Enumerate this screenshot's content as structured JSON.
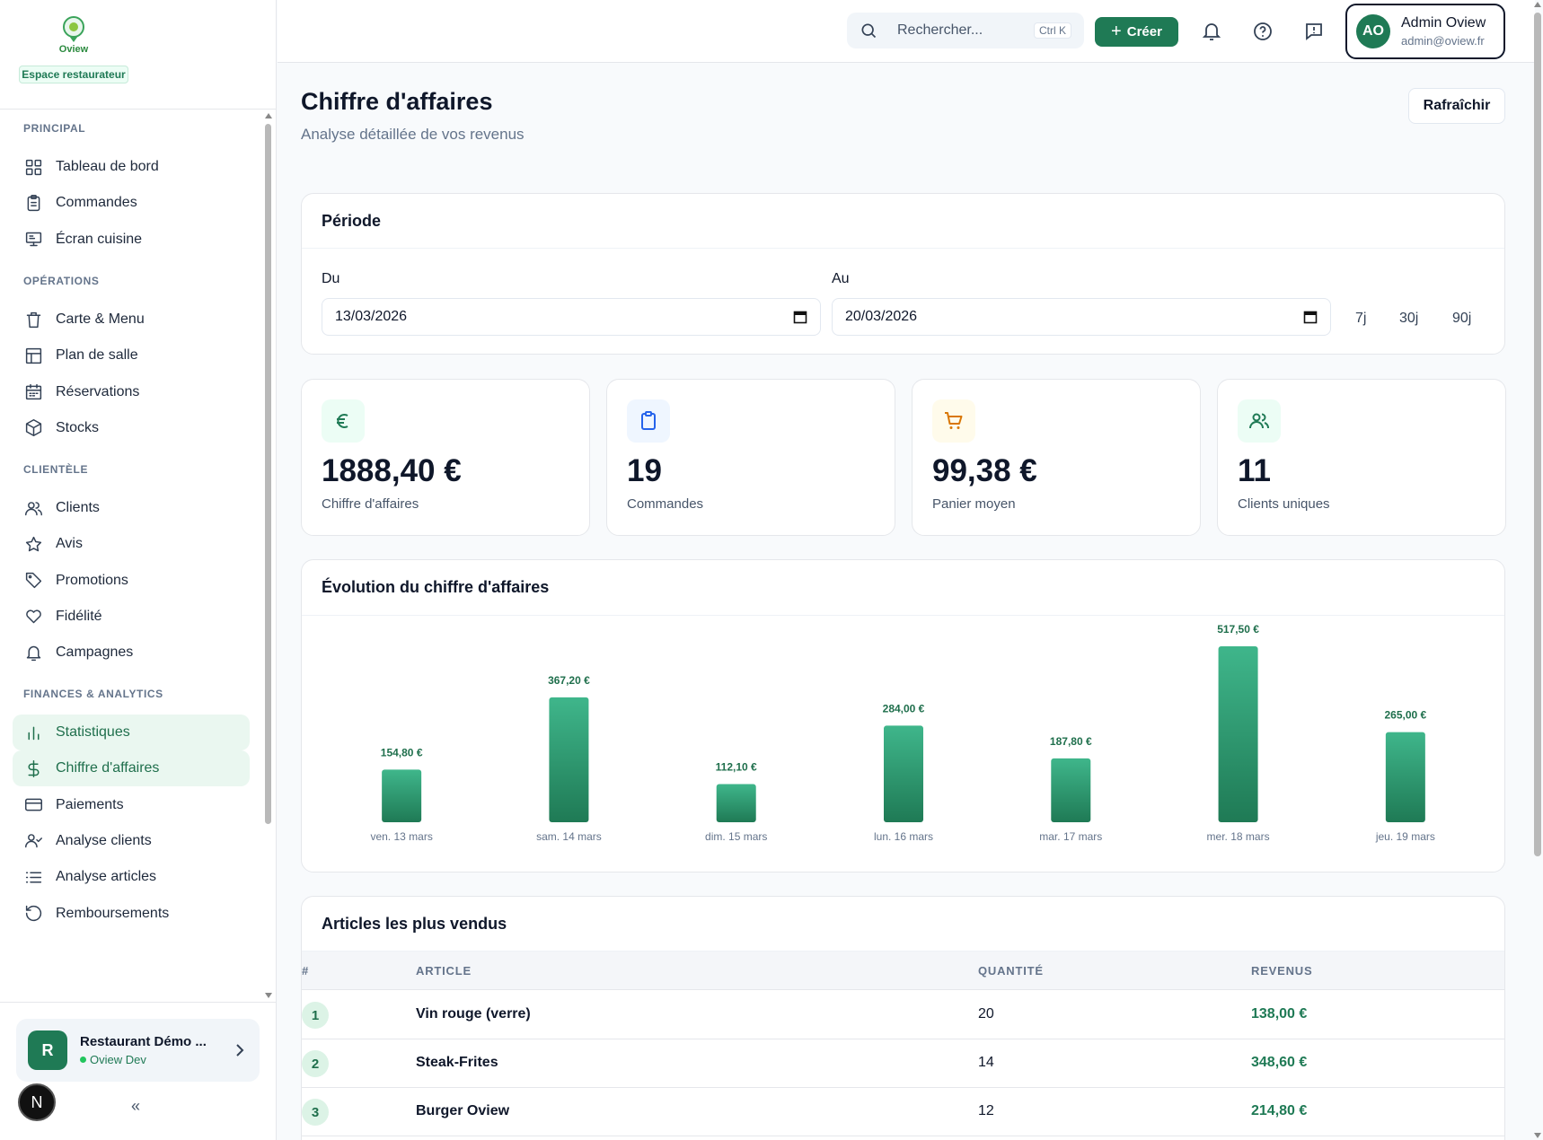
{
  "brand": {
    "logo_text": "Oview",
    "badge": "Espace restaurateur"
  },
  "nav": {
    "sections": [
      {
        "title": "PRINCIPAL",
        "items": [
          {
            "label": "Tableau de bord",
            "icon": "grid-icon"
          },
          {
            "label": "Commandes",
            "icon": "clipboard-icon"
          },
          {
            "label": "Écran cuisine",
            "icon": "monitor-icon"
          }
        ]
      },
      {
        "title": "OPÉRATIONS",
        "items": [
          {
            "label": "Carte & Menu",
            "icon": "trash-menu-icon"
          },
          {
            "label": "Plan de salle",
            "icon": "layout-icon"
          },
          {
            "label": "Réservations",
            "icon": "calendar-icon"
          },
          {
            "label": "Stocks",
            "icon": "package-icon"
          }
        ]
      },
      {
        "title": "CLIENTÈLE",
        "items": [
          {
            "label": "Clients",
            "icon": "users-icon"
          },
          {
            "label": "Avis",
            "icon": "star-icon"
          },
          {
            "label": "Promotions",
            "icon": "tag-icon"
          },
          {
            "label": "Fidélité",
            "icon": "heart-icon"
          },
          {
            "label": "Campagnes",
            "icon": "bell-icon"
          }
        ]
      },
      {
        "title": "FINANCES & ANALYTICS",
        "items": [
          {
            "label": "Statistiques",
            "icon": "bar-chart-icon",
            "active": true
          },
          {
            "label": "Chiffre d'affaires",
            "icon": "dollar-icon",
            "active": true
          },
          {
            "label": "Paiements",
            "icon": "credit-card-icon"
          },
          {
            "label": "Analyse clients",
            "icon": "user-check-icon"
          },
          {
            "label": "Analyse articles",
            "icon": "list-icon"
          },
          {
            "label": "Remboursements",
            "icon": "refresh-ccw-icon"
          }
        ]
      }
    ]
  },
  "restaurant": {
    "initial": "R",
    "name": "Restaurant Démo ...",
    "env": "Oview Dev"
  },
  "bottom_avatar": "N",
  "collapse_label": "«",
  "header": {
    "search_placeholder": "Rechercher...",
    "search_shortcut": "Ctrl K",
    "create_label": "Créer",
    "user": {
      "initials": "AO",
      "name": "Admin Oview",
      "email": "admin@oview.fr"
    }
  },
  "page": {
    "title": "Chiffre d'affaires",
    "subtitle": "Analyse détaillée de vos revenus",
    "refresh_label": "Rafraîchir"
  },
  "period": {
    "title": "Période",
    "from_label": "Du",
    "from_value": "13/03/2026",
    "to_label": "Au",
    "to_value": "20/03/2026",
    "quick_ranges": [
      "7j",
      "30j",
      "90j"
    ]
  },
  "kpis": [
    {
      "value": "1888,40 €",
      "label": "Chiffre d'affaires",
      "icon": "euro-icon",
      "bg": "#ecfdf5",
      "fg": "#1f7a55"
    },
    {
      "value": "19",
      "label": "Commandes",
      "icon": "clipboard-icon",
      "bg": "#eff6ff",
      "fg": "#2563eb"
    },
    {
      "value": "99,38 €",
      "label": "Panier moyen",
      "icon": "cart-icon",
      "bg": "#fffbeb",
      "fg": "#d97706"
    },
    {
      "value": "11",
      "label": "Clients uniques",
      "icon": "users-icon",
      "bg": "#ecfdf5",
      "fg": "#1f7a55"
    }
  ],
  "chart_data": {
    "type": "bar",
    "title": "Évolution du chiffre d'affaires",
    "categories": [
      "ven. 13 mars",
      "sam. 14 mars",
      "dim. 15 mars",
      "lun. 16 mars",
      "mar. 17 mars",
      "mer. 18 mars",
      "jeu. 19 mars"
    ],
    "values": [
      154.8,
      367.2,
      112.1,
      284.0,
      187.8,
      517.5,
      265.0
    ],
    "value_labels": [
      "154,80 €",
      "367,20 €",
      "112,10 €",
      "284,00 €",
      "187,80 €",
      "517,50 €",
      "265,00 €"
    ],
    "ylim": [
      0,
      517.5
    ],
    "colors": {
      "bar_top": "#3fb68b",
      "bar_bottom": "#1f7a55",
      "label": "#1f6f4c"
    }
  },
  "top_articles": {
    "title": "Articles les plus vendus",
    "columns": [
      "#",
      "ARTICLE",
      "QUANTITÉ",
      "REVENUS"
    ],
    "rows": [
      {
        "rank": "1",
        "article": "Vin rouge (verre)",
        "quantity": "20",
        "revenue": "138,00 €"
      },
      {
        "rank": "2",
        "article": "Steak-Frites",
        "quantity": "14",
        "revenue": "348,60 €"
      },
      {
        "rank": "3",
        "article": "Burger Oview",
        "quantity": "12",
        "revenue": "214,80 €"
      }
    ]
  }
}
